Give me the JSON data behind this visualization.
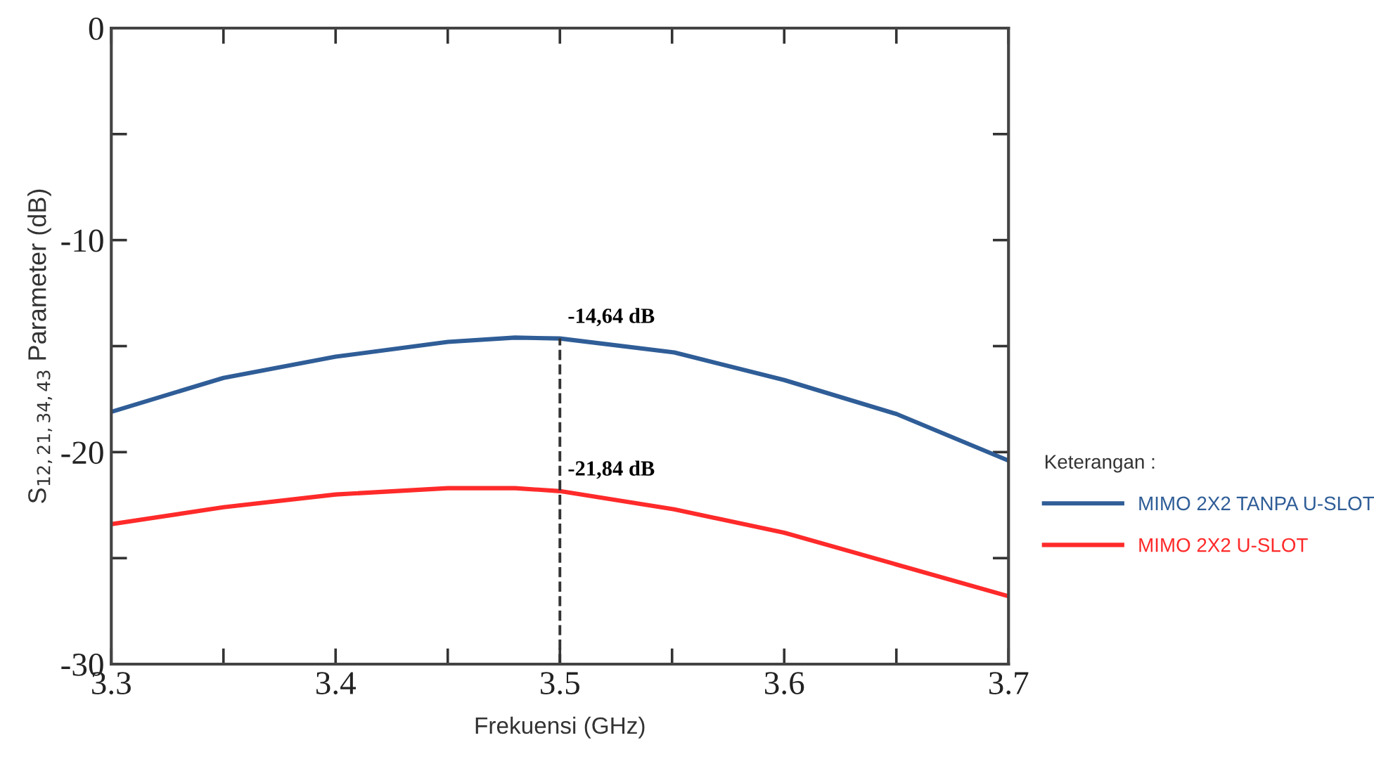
{
  "chart_data": {
    "type": "line",
    "xlabel": "Frekuensi (GHz)",
    "ylabel": "S$_{12,21,34,43}$ Parameter (dB)",
    "legend_title": "Keterangan :",
    "legend": "right",
    "x": [
      3.3,
      3.35,
      3.4,
      3.45,
      3.48,
      3.5,
      3.551,
      3.6,
      3.65,
      3.7
    ],
    "series": [
      {
        "name": "MIMO 2X2 TANPA U-SLOT",
        "color": "#2f5d97",
        "values": [
          -18.1,
          -16.5,
          -15.5,
          -14.8,
          -14.6,
          -14.64,
          -15.3,
          -16.6,
          -18.2,
          -20.4
        ]
      },
      {
        "name": "MIMO 2X2 U-SLOT",
        "color": "#ff2a2a",
        "values": [
          -23.4,
          -22.6,
          -22.0,
          -21.7,
          -21.7,
          -21.84,
          -22.7,
          -23.8,
          -25.3,
          -26.8
        ]
      }
    ],
    "xlim": [
      3.3,
      3.7
    ],
    "xticks": [
      3.3,
      {
        "value": 3.35,
        "label": null
      },
      3.4,
      {
        "value": 3.45,
        "label": null
      },
      3.5,
      {
        "value": 3.55,
        "label": null
      },
      3.6,
      {
        "value": 3.65,
        "label": null
      },
      3.7
    ],
    "ylim": [
      -30,
      0
    ],
    "yticks": [
      -30,
      {
        "value": -25,
        "label": null
      },
      -20,
      {
        "value": -15,
        "label": null
      },
      -10,
      {
        "value": -5,
        "label": null
      },
      0
    ],
    "ref_lines": [
      {
        "axis": "x",
        "value": 3.5,
        "color": "#333333",
        "line_style": "dashed"
      }
    ],
    "annotations": [
      {
        "text": "-14,64 dB",
        "x": 3.5,
        "y": -14.64
      },
      {
        "text": "-21,84 dB",
        "x": 3.5,
        "y": -21.84
      }
    ],
    "grid": false,
    "marker": "none",
    "line_style": "solid"
  }
}
